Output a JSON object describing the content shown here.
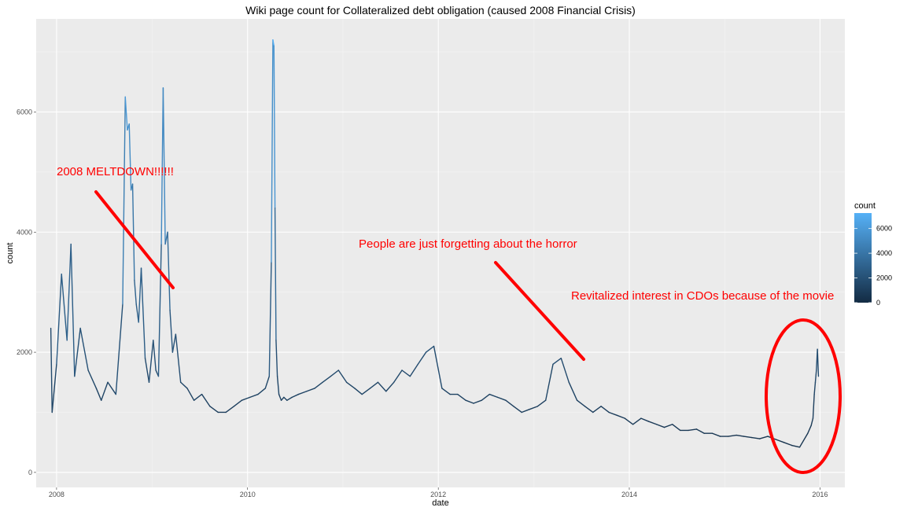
{
  "chart_data": {
    "type": "line",
    "title": "Wiki page count for Collateralized debt obligation (caused 2008 Financial Crisis)",
    "xlabel": "date",
    "ylabel": "count",
    "xlim": [
      "2007-10-15",
      "2016-04-05"
    ],
    "ylim": [
      -250,
      7550
    ],
    "x_ticks": [
      "2008",
      "2010",
      "2012",
      "2014",
      "2016"
    ],
    "y_ticks": [
      "0",
      "2000",
      "4000",
      "6000"
    ],
    "grid": true,
    "color_scale": {
      "title": "count",
      "low": "#132B43",
      "high": "#56B1F7",
      "ticks": [
        "0",
        "2000",
        "4000",
        "6000"
      ],
      "range": [
        0,
        7250
      ]
    },
    "legend_placement": "right",
    "series": [
      {
        "x": [
          "2007-12-10",
          "2007-12-15",
          "2008-01-01",
          "2008-01-20",
          "2008-02-10",
          "2008-02-25",
          "2008-03-10",
          "2008-04-01",
          "2008-05-01",
          "2008-06-01",
          "2008-06-20",
          "2008-07-15",
          "2008-08-15",
          "2008-09-10",
          "2008-09-20",
          "2008-09-28",
          "2008-10-05",
          "2008-10-12",
          "2008-10-18",
          "2008-10-25",
          "2008-11-01",
          "2008-11-10",
          "2008-11-20",
          "2008-12-05",
          "2008-12-20",
          "2009-01-05",
          "2009-01-15",
          "2009-01-25",
          "2009-02-05",
          "2009-02-12",
          "2009-02-20",
          "2009-03-01",
          "2009-03-10",
          "2009-03-20",
          "2009-04-01",
          "2009-04-20",
          "2009-05-15",
          "2009-06-10",
          "2009-07-10",
          "2009-08-10",
          "2009-09-10",
          "2009-10-10",
          "2009-11-10",
          "2009-12-10",
          "2010-01-10",
          "2010-02-10",
          "2010-03-10",
          "2010-03-25",
          "2010-04-02",
          "2010-04-08",
          "2010-04-12",
          "2010-04-16",
          "2010-04-20",
          "2010-04-25",
          "2010-05-01",
          "2010-05-10",
          "2010-05-20",
          "2010-06-01",
          "2010-06-20",
          "2010-07-15",
          "2010-08-15",
          "2010-09-15",
          "2010-10-15",
          "2010-11-15",
          "2010-12-15",
          "2011-01-15",
          "2011-02-15",
          "2011-03-15",
          "2011-04-15",
          "2011-05-15",
          "2011-06-15",
          "2011-07-15",
          "2011-08-15",
          "2011-09-15",
          "2011-10-15",
          "2011-11-15",
          "2011-12-15",
          "2012-01-15",
          "2012-02-15",
          "2012-03-15",
          "2012-04-15",
          "2012-05-15",
          "2012-06-15",
          "2012-07-15",
          "2012-08-15",
          "2012-09-15",
          "2012-10-15",
          "2012-11-15",
          "2012-12-15",
          "2013-01-15",
          "2013-02-15",
          "2013-03-15",
          "2013-04-15",
          "2013-05-15",
          "2013-06-15",
          "2013-07-15",
          "2013-08-15",
          "2013-09-15",
          "2013-10-15",
          "2013-11-15",
          "2013-12-15",
          "2014-01-15",
          "2014-02-15",
          "2014-03-15",
          "2014-04-15",
          "2014-05-15",
          "2014-06-15",
          "2014-07-15",
          "2014-08-15",
          "2014-09-15",
          "2014-10-15",
          "2014-11-15",
          "2014-12-15",
          "2015-01-15",
          "2015-02-15",
          "2015-03-15",
          "2015-04-15",
          "2015-05-15",
          "2015-06-15",
          "2015-07-15",
          "2015-08-15",
          "2015-09-15",
          "2015-10-15",
          "2015-11-15",
          "2015-11-28",
          "2015-12-05",
          "2015-12-10",
          "2015-12-14",
          "2015-12-18",
          "2015-12-22",
          "2015-12-26"
        ],
        "values": [
          2400,
          1000,
          1800,
          3300,
          2200,
          3800,
          1600,
          2400,
          1700,
          1400,
          1200,
          1500,
          1300,
          2800,
          6250,
          5700,
          5800,
          4700,
          4800,
          3200,
          2800,
          2500,
          3400,
          1900,
          1500,
          2200,
          1700,
          1600,
          3800,
          6400,
          3800,
          4000,
          2700,
          2000,
          2300,
          1500,
          1400,
          1200,
          1300,
          1100,
          1000,
          1000,
          1100,
          1200,
          1250,
          1300,
          1400,
          1600,
          3500,
          7200,
          7100,
          4400,
          2200,
          1600,
          1300,
          1200,
          1250,
          1200,
          1250,
          1300,
          1350,
          1400,
          1500,
          1600,
          1700,
          1500,
          1400,
          1300,
          1400,
          1500,
          1350,
          1500,
          1700,
          1600,
          1800,
          2000,
          2100,
          1400,
          1300,
          1300,
          1200,
          1150,
          1200,
          1300,
          1250,
          1200,
          1100,
          1000,
          1050,
          1100,
          1200,
          1800,
          1900,
          1500,
          1200,
          1100,
          1000,
          1100,
          1000,
          950,
          900,
          800,
          900,
          850,
          800,
          750,
          800,
          700,
          700,
          720,
          650,
          650,
          600,
          600,
          620,
          600,
          580,
          560,
          600,
          550,
          500,
          450,
          420,
          650,
          780,
          900,
          1300,
          1500,
          1700,
          2050,
          1600
        ]
      }
    ],
    "annotations": [
      "2008 MELTDOWN!!!!!!",
      "People are just forgetting about the horror",
      "Revitalized interest in CDOs because of the movie"
    ]
  }
}
